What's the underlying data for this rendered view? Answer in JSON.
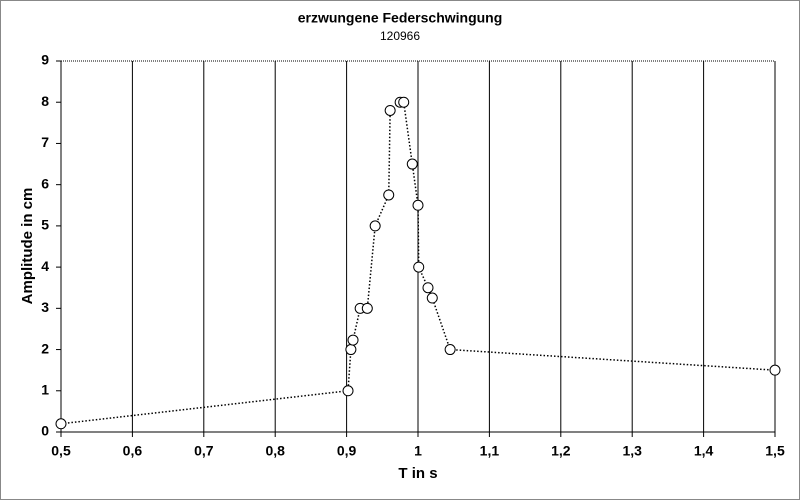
{
  "chart_data": {
    "type": "line",
    "title": "erzwungene Federschwingung",
    "subtitle": "120966",
    "x_label": "T in s",
    "y_label": "Amplitude in cm",
    "series": [
      {
        "name": "Amplitude",
        "color": "#000000",
        "x": [
          0.5,
          0.902,
          0.906,
          0.909,
          0.919,
          0.929,
          0.94,
          0.959,
          0.961,
          0.975,
          0.98,
          0.992,
          1.0,
          1.001,
          1.014,
          1.02,
          1.045,
          1.5
        ],
        "values": [
          0.2,
          1.0,
          2.0,
          2.23,
          3.0,
          3.0,
          5.0,
          5.75,
          7.8,
          8.0,
          8.0,
          6.5,
          5.5,
          4.0,
          3.5,
          3.25,
          2.0,
          1.5
        ]
      }
    ],
    "xlim": [
      0.5,
      1.5
    ],
    "xticks": [
      {
        "value": 0.5,
        "label": "0,5"
      },
      {
        "value": 0.6,
        "label": "0,6"
      },
      {
        "value": 0.7,
        "label": "0,7"
      },
      {
        "value": 0.8,
        "label": "0,8"
      },
      {
        "value": 0.9,
        "label": "0,9"
      },
      {
        "value": 1,
        "label": "1"
      },
      {
        "value": 1.1,
        "label": "1,1"
      },
      {
        "value": 1.2,
        "label": "1,2"
      },
      {
        "value": 1.3,
        "label": "1,3"
      },
      {
        "value": 1.4,
        "label": "1,4"
      },
      {
        "value": 1.5,
        "label": "1,5"
      }
    ],
    "ylim": [
      0,
      9
    ],
    "yticks": [
      0,
      1,
      2,
      3,
      4,
      5,
      6,
      7,
      8,
      9
    ],
    "grid": true
  }
}
